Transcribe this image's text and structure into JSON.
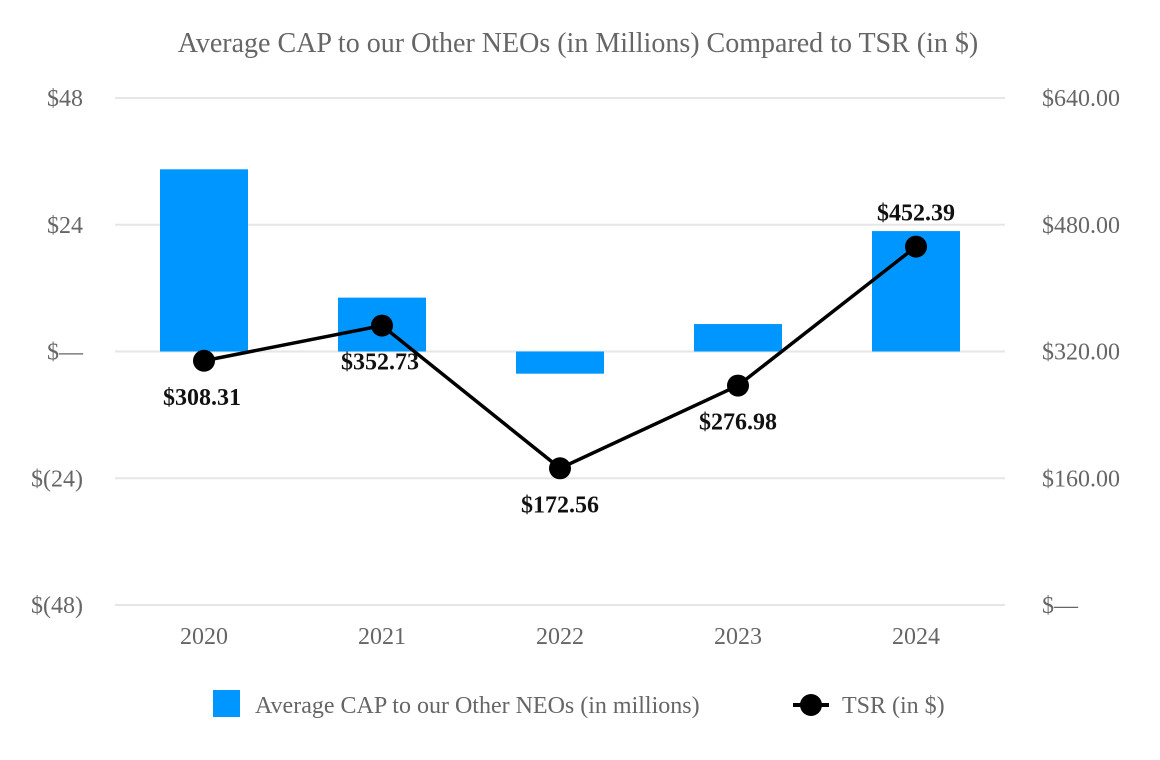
{
  "chart_data": {
    "type": "bar+line",
    "title": "Average CAP to our Other NEOs (in Millions) Compared to TSR (in $)",
    "categories": [
      "2020",
      "2021",
      "2022",
      "2023",
      "2024"
    ],
    "series": [
      {
        "name": "Average CAP to our Other NEOs (in millions)",
        "type": "bar",
        "axis": "left",
        "color": "#0096ff",
        "values": [
          34.5,
          10.2,
          -4.2,
          5.2,
          22.8
        ]
      },
      {
        "name": "TSR (in $)",
        "type": "line",
        "axis": "right",
        "color": "#000000",
        "values": [
          308.31,
          352.73,
          172.56,
          276.98,
          452.39
        ],
        "labels": [
          "$308.31",
          "$352.73",
          "$172.56",
          "$276.98",
          "$452.39"
        ]
      }
    ],
    "y_left": {
      "ylim": [
        -48,
        48
      ],
      "ticks": [
        48,
        24,
        0,
        -24,
        -48
      ],
      "tick_labels": [
        "$48",
        "$24",
        "$—",
        "$(24)",
        "$(48)"
      ]
    },
    "y_right": {
      "ylim": [
        0,
        640
      ],
      "ticks": [
        640,
        480,
        320,
        160,
        0
      ],
      "tick_labels": [
        "$640.00",
        "$480.00",
        "$320.00",
        "$160.00",
        "$—"
      ]
    },
    "grid": true,
    "legend_position": "bottom-center"
  }
}
